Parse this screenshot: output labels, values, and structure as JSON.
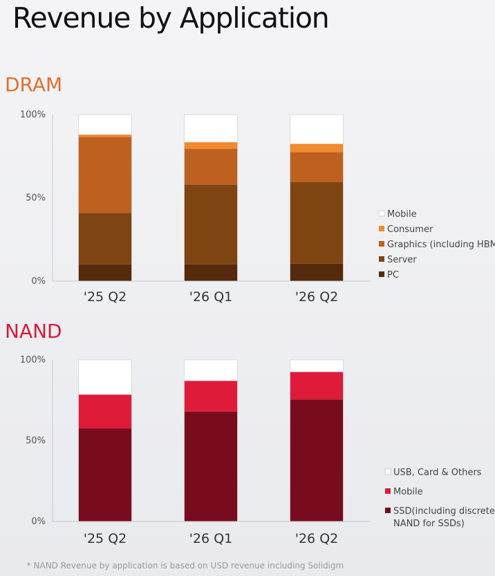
{
  "page": {
    "title": "Revenue by Application",
    "footnote": "* NAND Revenue by application is based on USD revenue including Solidigm"
  },
  "colors": {
    "dram_heading": "#e0702a",
    "nand_heading": "#d7193a"
  },
  "chart_data": [
    {
      "id": "dram",
      "type": "bar",
      "stacked": true,
      "title": "DRAM",
      "categories": [
        "'25 Q2",
        "'26 Q1",
        "'26 Q2"
      ],
      "y_ticks": [
        "100%",
        "50%",
        "0%"
      ],
      "ylim": [
        0,
        100
      ],
      "legend_position": "right",
      "series": [
        {
          "name": "PC",
          "color": "#552a0d",
          "values": [
            10,
            10,
            10.5
          ]
        },
        {
          "name": "Server",
          "color": "#7e4412",
          "values": [
            31,
            48,
            49
          ]
        },
        {
          "name": "Graphics (including HBM)",
          "color": "#be6020",
          "values": [
            45.5,
            21.5,
            18
          ]
        },
        {
          "name": "Consumer",
          "color": "#ef8a2e",
          "values": [
            1.5,
            4,
            5
          ]
        },
        {
          "name": "Mobile",
          "color": "#ffffff",
          "values": [
            12,
            16.5,
            17.5
          ]
        }
      ]
    },
    {
      "id": "nand",
      "type": "bar",
      "stacked": true,
      "title": "NAND",
      "categories": [
        "'25 Q2",
        "'26 Q1",
        "'26 Q2"
      ],
      "y_ticks": [
        "100%",
        "50%",
        "0%"
      ],
      "ylim": [
        0,
        100
      ],
      "legend_position": "right",
      "series": [
        {
          "name": "SSD(including discrete NAND for SSDs)",
          "color": "#780c1e",
          "values": [
            57.5,
            68,
            75.5
          ]
        },
        {
          "name": "Mobile",
          "color": "#de1c3a",
          "values": [
            21,
            19,
            17
          ]
        },
        {
          "name": "USB, Card & Others",
          "color": "#ffffff",
          "values": [
            21.5,
            13,
            7.5
          ]
        }
      ]
    }
  ]
}
